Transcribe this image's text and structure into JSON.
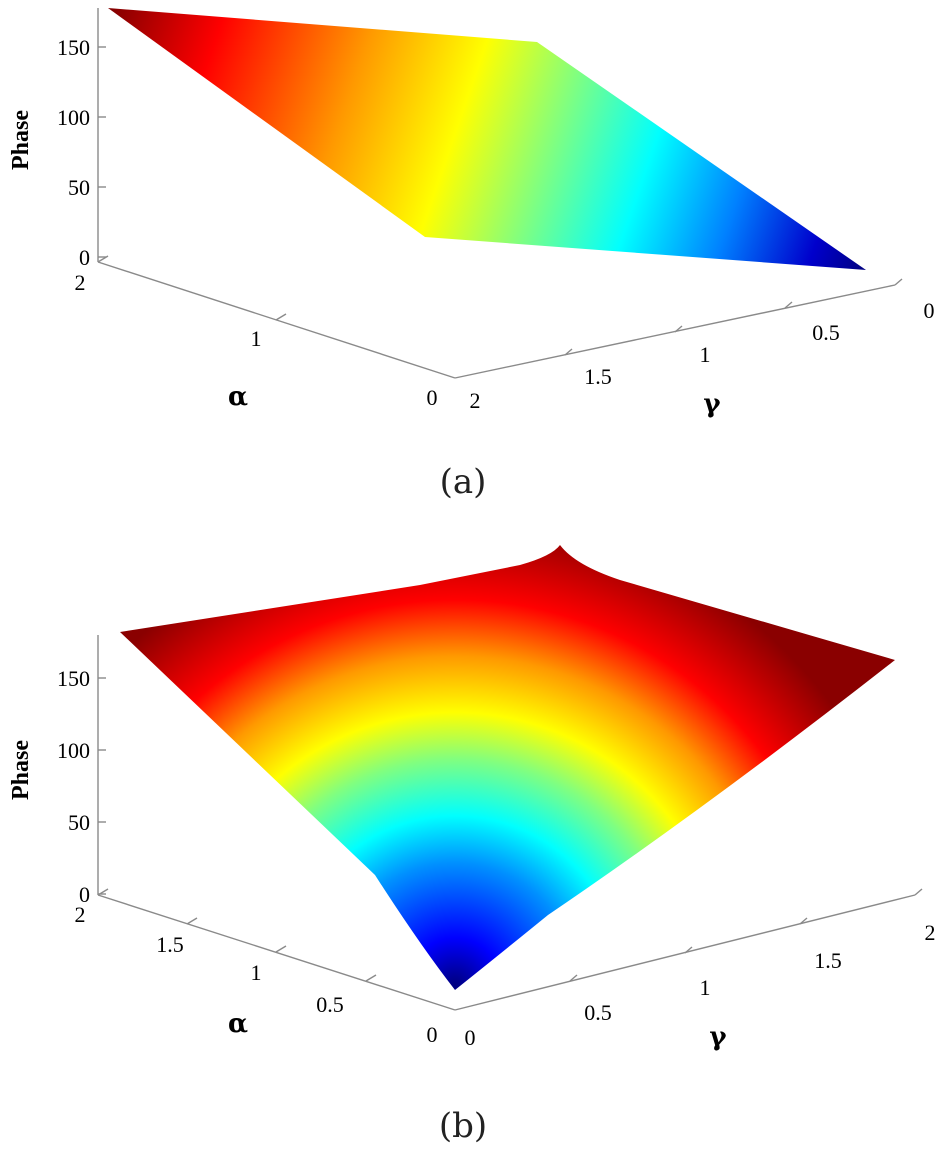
{
  "chart_data": [
    {
      "panel": "(a)",
      "type": "surface",
      "zlabel": "Phase",
      "xlabel": "α",
      "ylabel": "γ",
      "z_ticks": [
        "0",
        "50",
        "100",
        "150"
      ],
      "x_ticks": [
        "0",
        "1",
        "2"
      ],
      "y_ticks": [
        "0",
        "0.5",
        "1",
        "1.5",
        "2"
      ],
      "x_range": [
        0,
        2
      ],
      "y_range": [
        0,
        2
      ],
      "z_range": [
        0,
        180
      ],
      "colormap": "jet",
      "corner_values": [
        {
          "alpha": 2,
          "gamma": 2,
          "phase": 180
        },
        {
          "alpha": 2,
          "gamma": 0,
          "phase": 90
        },
        {
          "alpha": 0,
          "gamma": 2,
          "phase": 90
        },
        {
          "alpha": 0,
          "gamma": 0,
          "phase": 0
        }
      ]
    },
    {
      "panel": "(b)",
      "type": "surface",
      "zlabel": "Phase",
      "xlabel": "α",
      "ylabel": "γ",
      "z_ticks": [
        "0",
        "50",
        "100",
        "150"
      ],
      "x_ticks": [
        "0",
        "0.5",
        "1",
        "1.5",
        "2"
      ],
      "y_ticks": [
        "0",
        "0.5",
        "1",
        "1.5",
        "2"
      ],
      "x_range": [
        0,
        2
      ],
      "y_range": [
        0,
        2
      ],
      "z_range": [
        0,
        180
      ],
      "colormap": "jet",
      "corner_values": [
        {
          "alpha": 0,
          "gamma": 0,
          "phase": 0
        },
        {
          "alpha": 2,
          "gamma": 0,
          "phase": 180
        },
        {
          "alpha": 0,
          "gamma": 2,
          "phase": 180
        },
        {
          "alpha": 2,
          "gamma": 2,
          "phase": 180
        }
      ]
    }
  ]
}
